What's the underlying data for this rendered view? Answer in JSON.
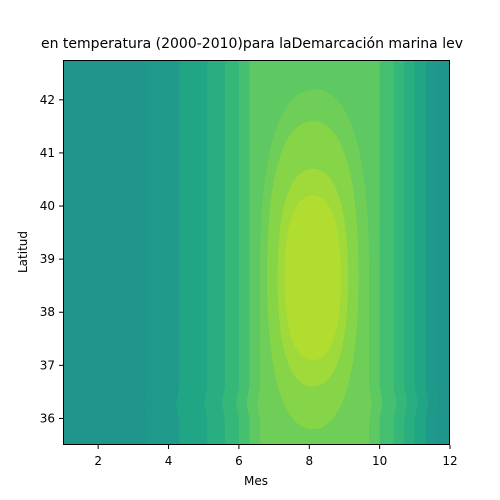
{
  "chart_data": {
    "type": "heatmap",
    "title": "en temperatura (2000-2010)para laDemarcación marina lev",
    "xlabel": "Mes",
    "ylabel": "Latitud",
    "xlim": [
      1,
      12
    ],
    "ylim": [
      35.5,
      42.75
    ],
    "x_ticks": [
      2,
      4,
      6,
      8,
      10,
      12
    ],
    "y_ticks": [
      36,
      37,
      38,
      39,
      40,
      41,
      42
    ],
    "colormap": "viridis",
    "colors": {
      "c0": "#23898e",
      "c1": "#218f8d",
      "c2": "#1f958b",
      "c3": "#1f9a8a",
      "c4": "#21a685",
      "c5": "#28ae80",
      "c6": "#35b779",
      "c7": "#45bf70",
      "c8": "#5ec962",
      "c9": "#6ece58",
      "c10": "#86d549",
      "c11": "#9fda3a",
      "c12": "#b0dd2f"
    },
    "contour_levels": [
      {
        "x0": 1.0,
        "x1": 12.0,
        "y0": 35.5,
        "y1": 42.75,
        "level": 2
      },
      {
        "x0": 3.4,
        "x1": 11.6,
        "y0": 35.5,
        "y1": 42.75,
        "level": 3
      },
      {
        "x0": 4.3,
        "x1": 11.3,
        "y0": 35.5,
        "y1": 42.75,
        "level": 4
      },
      {
        "x0": 5.1,
        "x1": 11.0,
        "y0": 35.5,
        "y1": 42.75,
        "level": 5
      },
      {
        "x0": 5.6,
        "x1": 10.7,
        "y0": 35.5,
        "y1": 42.75,
        "level": 6
      },
      {
        "x0": 6.0,
        "x1": 10.4,
        "y0": 35.5,
        "y1": 42.75,
        "level": 7
      },
      {
        "x0": 6.3,
        "x1": 10.0,
        "y0": 35.5,
        "y1": 42.75,
        "level": 8
      },
      {
        "x0": 6.6,
        "x1": 9.7,
        "y0": 35.5,
        "y1": 42.2,
        "level": 9
      },
      {
        "x0": 6.8,
        "x1": 9.4,
        "y0": 35.8,
        "y1": 41.6,
        "level": 10
      },
      {
        "x0": 7.1,
        "x1": 9.1,
        "y0": 36.6,
        "y1": 40.7,
        "level": 11
      },
      {
        "x0": 7.3,
        "x1": 8.9,
        "y0": 37.1,
        "y1": 40.2,
        "level": 12
      }
    ],
    "cold_regions": [
      {
        "x0": 1.0,
        "x1": 3.2,
        "y0": 37.2,
        "y1": 42.75,
        "level": 1
      },
      {
        "x0": 1.8,
        "x1": 2.6,
        "y0": 39.6,
        "y1": 42.75,
        "level": 0
      },
      {
        "x0": 11.4,
        "x1": 12.0,
        "y0": 41.0,
        "y1": 42.6,
        "level": 0
      }
    ]
  }
}
